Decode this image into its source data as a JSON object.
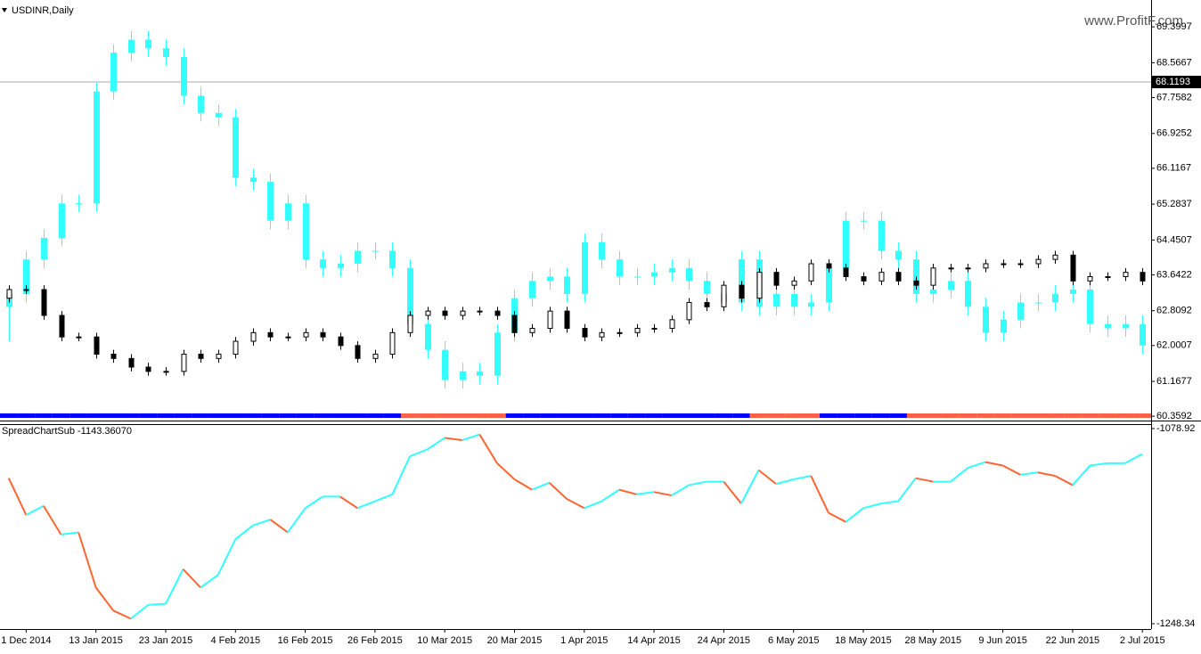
{
  "chart_data": [
    {
      "type": "candlestick",
      "title": "USDINR,Daily",
      "watermark": "www.ProfitF.com",
      "xlim": [
        -0.5,
        65.5
      ],
      "ylim": [
        60.3,
        69.92
      ],
      "yticks": [
        60.3592,
        61.1677,
        62.0007,
        62.8092,
        63.6422,
        64.4507,
        65.2837,
        66.1167,
        66.9252,
        67.7582,
        68.5667,
        69.3997
      ],
      "last_price": 68.1193,
      "series": [
        {
          "color": "#33ffff",
          "open": [
            62.9,
            63.2,
            64.0,
            64.5,
            65.3,
            65.3,
            67.9,
            68.8,
            69.1,
            68.9,
            68.7,
            67.8,
            67.4,
            67.3,
            65.9,
            65.8,
            64.9,
            65.3,
            64.0,
            63.8,
            63.9,
            64.2,
            64.2,
            63.8,
            62.5,
            61.9,
            61.2,
            61.4,
            61.3,
            62.3,
            63.1,
            63.5,
            63.6,
            63.2,
            64.4,
            64.0,
            63.6,
            63.6,
            63.7,
            63.8,
            63.5,
            63.2,
            63.0,
            64.0,
            62.9,
            63.2,
            62.9,
            63.0,
            63.8,
            64.9,
            64.9,
            64.2,
            64.0,
            63.2,
            63.3,
            63.5,
            62.9,
            62.3,
            62.6,
            63.0,
            63.0,
            63.2,
            63.3,
            62.5,
            62.4,
            62.5
          ],
          "high": [
            63.4,
            64.2,
            64.7,
            65.5,
            65.5,
            68.1,
            69.0,
            69.3,
            69.3,
            69.1,
            68.9,
            68.0,
            67.6,
            67.5,
            66.1,
            66.0,
            65.5,
            65.5,
            64.2,
            64.1,
            64.4,
            64.4,
            64.4,
            64.0,
            62.7,
            62.1,
            61.6,
            61.6,
            62.5,
            63.3,
            63.7,
            63.8,
            63.8,
            64.6,
            64.6,
            64.2,
            63.8,
            63.9,
            64.0,
            64.0,
            63.7,
            63.4,
            64.2,
            64.2,
            63.4,
            63.4,
            63.2,
            64.0,
            65.1,
            65.1,
            65.1,
            64.4,
            64.2,
            63.5,
            63.7,
            63.7,
            63.1,
            62.8,
            63.2,
            63.2,
            63.4,
            63.5,
            63.5,
            62.7,
            62.7,
            62.7
          ],
          "low": [
            62.1,
            63.0,
            63.8,
            64.3,
            65.1,
            65.1,
            67.7,
            68.6,
            68.7,
            68.5,
            67.6,
            67.2,
            67.1,
            65.7,
            65.6,
            64.7,
            64.7,
            63.8,
            63.6,
            63.6,
            63.7,
            64.0,
            63.6,
            62.3,
            61.7,
            61.0,
            61.0,
            61.1,
            61.1,
            62.1,
            62.9,
            63.3,
            63.0,
            63.0,
            63.8,
            63.4,
            63.4,
            63.4,
            63.5,
            63.3,
            63.0,
            62.8,
            62.8,
            62.7,
            62.7,
            62.7,
            62.7,
            62.8,
            63.6,
            64.7,
            64.0,
            63.8,
            63.0,
            63.0,
            63.1,
            62.7,
            62.1,
            62.1,
            62.4,
            62.8,
            62.8,
            63.0,
            62.3,
            62.2,
            62.2,
            61.8
          ],
          "close": [
            63.2,
            64.0,
            64.5,
            65.3,
            65.3,
            67.9,
            68.8,
            69.1,
            68.9,
            68.7,
            67.8,
            67.4,
            67.3,
            65.9,
            65.8,
            64.9,
            65.3,
            64.0,
            63.8,
            63.9,
            64.2,
            64.2,
            63.8,
            62.5,
            61.9,
            61.2,
            61.4,
            61.3,
            62.3,
            63.1,
            63.5,
            63.6,
            63.2,
            64.4,
            64.0,
            63.6,
            63.6,
            63.7,
            63.8,
            63.5,
            63.2,
            63.0,
            64.0,
            62.9,
            63.2,
            62.9,
            63.0,
            63.8,
            64.9,
            64.9,
            64.2,
            64.0,
            63.2,
            63.3,
            63.5,
            62.9,
            62.3,
            62.6,
            63.0,
            63.0,
            63.2,
            63.3,
            62.5,
            62.4,
            62.5,
            62.0
          ]
        },
        {
          "up_color": "#ffffff",
          "down_color": "#000000",
          "outline": "#000000",
          "open": [
            63.1,
            63.3,
            63.3,
            62.7,
            62.2,
            62.2,
            61.8,
            61.7,
            61.5,
            61.4,
            61.4,
            61.8,
            61.7,
            61.8,
            62.1,
            62.3,
            62.2,
            62.2,
            62.3,
            62.2,
            62.0,
            61.7,
            61.8,
            62.3,
            62.7,
            62.8,
            62.7,
            62.8,
            62.8,
            62.7,
            62.3,
            62.4,
            62.8,
            62.4,
            62.2,
            62.3,
            62.3,
            62.4,
            62.4,
            62.6,
            63.0,
            62.9,
            63.4,
            63.1,
            63.7,
            63.4,
            63.5,
            63.9,
            63.8,
            63.6,
            63.5,
            63.7,
            63.5,
            63.4,
            63.8,
            63.8,
            63.8,
            63.9,
            63.9,
            63.9,
            64.0,
            64.1,
            63.5,
            63.6,
            63.6,
            63.7
          ],
          "high": [
            63.4,
            63.4,
            63.4,
            62.8,
            62.3,
            62.3,
            61.9,
            61.8,
            61.6,
            61.5,
            61.9,
            61.9,
            61.9,
            62.2,
            62.4,
            62.4,
            62.3,
            62.4,
            62.4,
            62.3,
            62.1,
            61.9,
            62.4,
            62.8,
            62.9,
            62.9,
            62.9,
            62.9,
            62.9,
            62.8,
            62.5,
            62.9,
            62.9,
            62.5,
            62.4,
            62.4,
            62.5,
            62.5,
            62.7,
            63.1,
            63.1,
            63.5,
            63.5,
            63.8,
            63.8,
            63.6,
            64.0,
            64.0,
            63.9,
            63.7,
            63.8,
            63.8,
            63.6,
            63.9,
            63.9,
            63.9,
            64.0,
            64.0,
            64.0,
            64.1,
            64.2,
            64.2,
            63.7,
            63.7,
            63.8,
            63.8
          ],
          "low": [
            63.0,
            63.2,
            62.6,
            62.1,
            62.1,
            61.7,
            61.6,
            61.4,
            61.3,
            61.3,
            61.3,
            61.6,
            61.6,
            61.7,
            62.0,
            62.1,
            62.1,
            62.1,
            62.1,
            61.9,
            61.6,
            61.6,
            61.7,
            62.2,
            62.6,
            62.6,
            62.6,
            62.7,
            62.6,
            62.2,
            62.2,
            62.3,
            62.3,
            62.1,
            62.1,
            62.2,
            62.2,
            62.3,
            62.3,
            62.5,
            62.8,
            62.8,
            63.0,
            63.0,
            63.3,
            63.3,
            63.4,
            63.7,
            63.5,
            63.4,
            63.4,
            63.4,
            63.3,
            63.3,
            63.7,
            63.7,
            63.7,
            63.8,
            63.8,
            63.8,
            63.9,
            63.4,
            63.4,
            63.5,
            63.5,
            63.4
          ],
          "close": [
            63.3,
            63.3,
            62.7,
            62.2,
            62.2,
            61.8,
            61.7,
            61.5,
            61.4,
            61.4,
            61.8,
            61.7,
            61.8,
            62.1,
            62.3,
            62.2,
            62.2,
            62.3,
            62.2,
            62.0,
            61.7,
            61.8,
            62.3,
            62.7,
            62.8,
            62.7,
            62.8,
            62.8,
            62.7,
            62.3,
            62.4,
            62.8,
            62.4,
            62.2,
            62.3,
            62.3,
            62.4,
            62.4,
            62.6,
            63.0,
            62.9,
            63.4,
            63.1,
            63.7,
            63.4,
            63.5,
            63.9,
            63.8,
            63.6,
            63.5,
            63.7,
            63.5,
            63.4,
            63.8,
            63.8,
            63.8,
            63.9,
            63.9,
            63.9,
            64.0,
            64.1,
            63.5,
            63.6,
            63.6,
            63.7,
            63.5
          ]
        }
      ],
      "signal_colors": [
        "#0000ff",
        "#0000ff",
        "#0000ff",
        "#0000ff",
        "#0000ff",
        "#0000ff",
        "#0000ff",
        "#0000ff",
        "#0000ff",
        "#0000ff",
        "#0000ff",
        "#0000ff",
        "#0000ff",
        "#0000ff",
        "#0000ff",
        "#0000ff",
        "#0000ff",
        "#0000ff",
        "#0000ff",
        "#0000ff",
        "#0000ff",
        "#0000ff",
        "#0000ff",
        "#ff6347",
        "#ff6347",
        "#ff6347",
        "#ff6347",
        "#ff6347",
        "#ff6347",
        "#0000ff",
        "#0000ff",
        "#0000ff",
        "#0000ff",
        "#0000ff",
        "#0000ff",
        "#0000ff",
        "#0000ff",
        "#0000ff",
        "#0000ff",
        "#0000ff",
        "#0000ff",
        "#0000ff",
        "#0000ff",
        "#ff6347",
        "#ff6347",
        "#ff6347",
        "#ff6347",
        "#0000ff",
        "#0000ff",
        "#0000ff",
        "#0000ff",
        "#0000ff",
        "#ff6347",
        "#ff6347",
        "#ff6347",
        "#ff6347",
        "#ff6347",
        "#ff6347",
        "#ff6347",
        "#ff6347",
        "#ff6347",
        "#ff6347",
        "#ff6347",
        "#ff6347",
        "#ff6347",
        "#ff6347"
      ]
    },
    {
      "type": "line",
      "title": "SpreadChartSub -1143.36070",
      "xlim": [
        -0.5,
        65.5
      ],
      "ylim": [
        -1248.34,
        -1078.92
      ],
      "yticks": [
        -1248.34,
        -1078.92
      ],
      "up_color": "#33ffff",
      "down_color": "#ff6633",
      "values": [
        -1122,
        -1154,
        -1146,
        -1171,
        -1169,
        -1217,
        -1237,
        -1244,
        -1232,
        -1231,
        -1201,
        -1217,
        -1206,
        -1175,
        -1163,
        -1158,
        -1169,
        -1148,
        -1138,
        -1138,
        -1148,
        -1142,
        -1136,
        -1103,
        -1097,
        -1087,
        -1089,
        -1084,
        -1109,
        -1123,
        -1132,
        -1126,
        -1140,
        -1148,
        -1142,
        -1132,
        -1136,
        -1134,
        -1137,
        -1128,
        -1125,
        -1125,
        -1144,
        -1115,
        -1127,
        -1123,
        -1120,
        -1152,
        -1160,
        -1148,
        -1144,
        -1142,
        -1122,
        -1125,
        -1125,
        -1113,
        -1108,
        -1111,
        -1119,
        -1117,
        -1120,
        -1128,
        -1111,
        -1109,
        -1109,
        -1101
      ],
      "xticks": [
        {
          "value": 1,
          "label": "1 Dec 2014"
        },
        {
          "value": 5,
          "label": "13 Jan 2015"
        },
        {
          "value": 9,
          "label": "23 Jan 2015"
        },
        {
          "value": 13,
          "label": "4 Feb 2015"
        },
        {
          "value": 17,
          "label": "16 Feb 2015"
        },
        {
          "value": 21,
          "label": "26 Feb 2015"
        },
        {
          "value": 25,
          "label": "10 Mar 2015"
        },
        {
          "value": 29,
          "label": "20 Mar 2015"
        },
        {
          "value": 33,
          "label": "1 Apr 2015"
        },
        {
          "value": 37,
          "label": "14 Apr 2015"
        },
        {
          "value": 41,
          "label": "24 Apr 2015"
        },
        {
          "value": 45,
          "label": "6 May 2015"
        },
        {
          "value": 49,
          "label": "18 May 2015"
        },
        {
          "value": 53,
          "label": "28 May 2015"
        },
        {
          "value": 57,
          "label": "9 Jun 2015"
        },
        {
          "value": 61,
          "label": "22 Jun 2015"
        },
        {
          "value": 65,
          "label": "2 Jul 2015"
        }
      ]
    }
  ]
}
